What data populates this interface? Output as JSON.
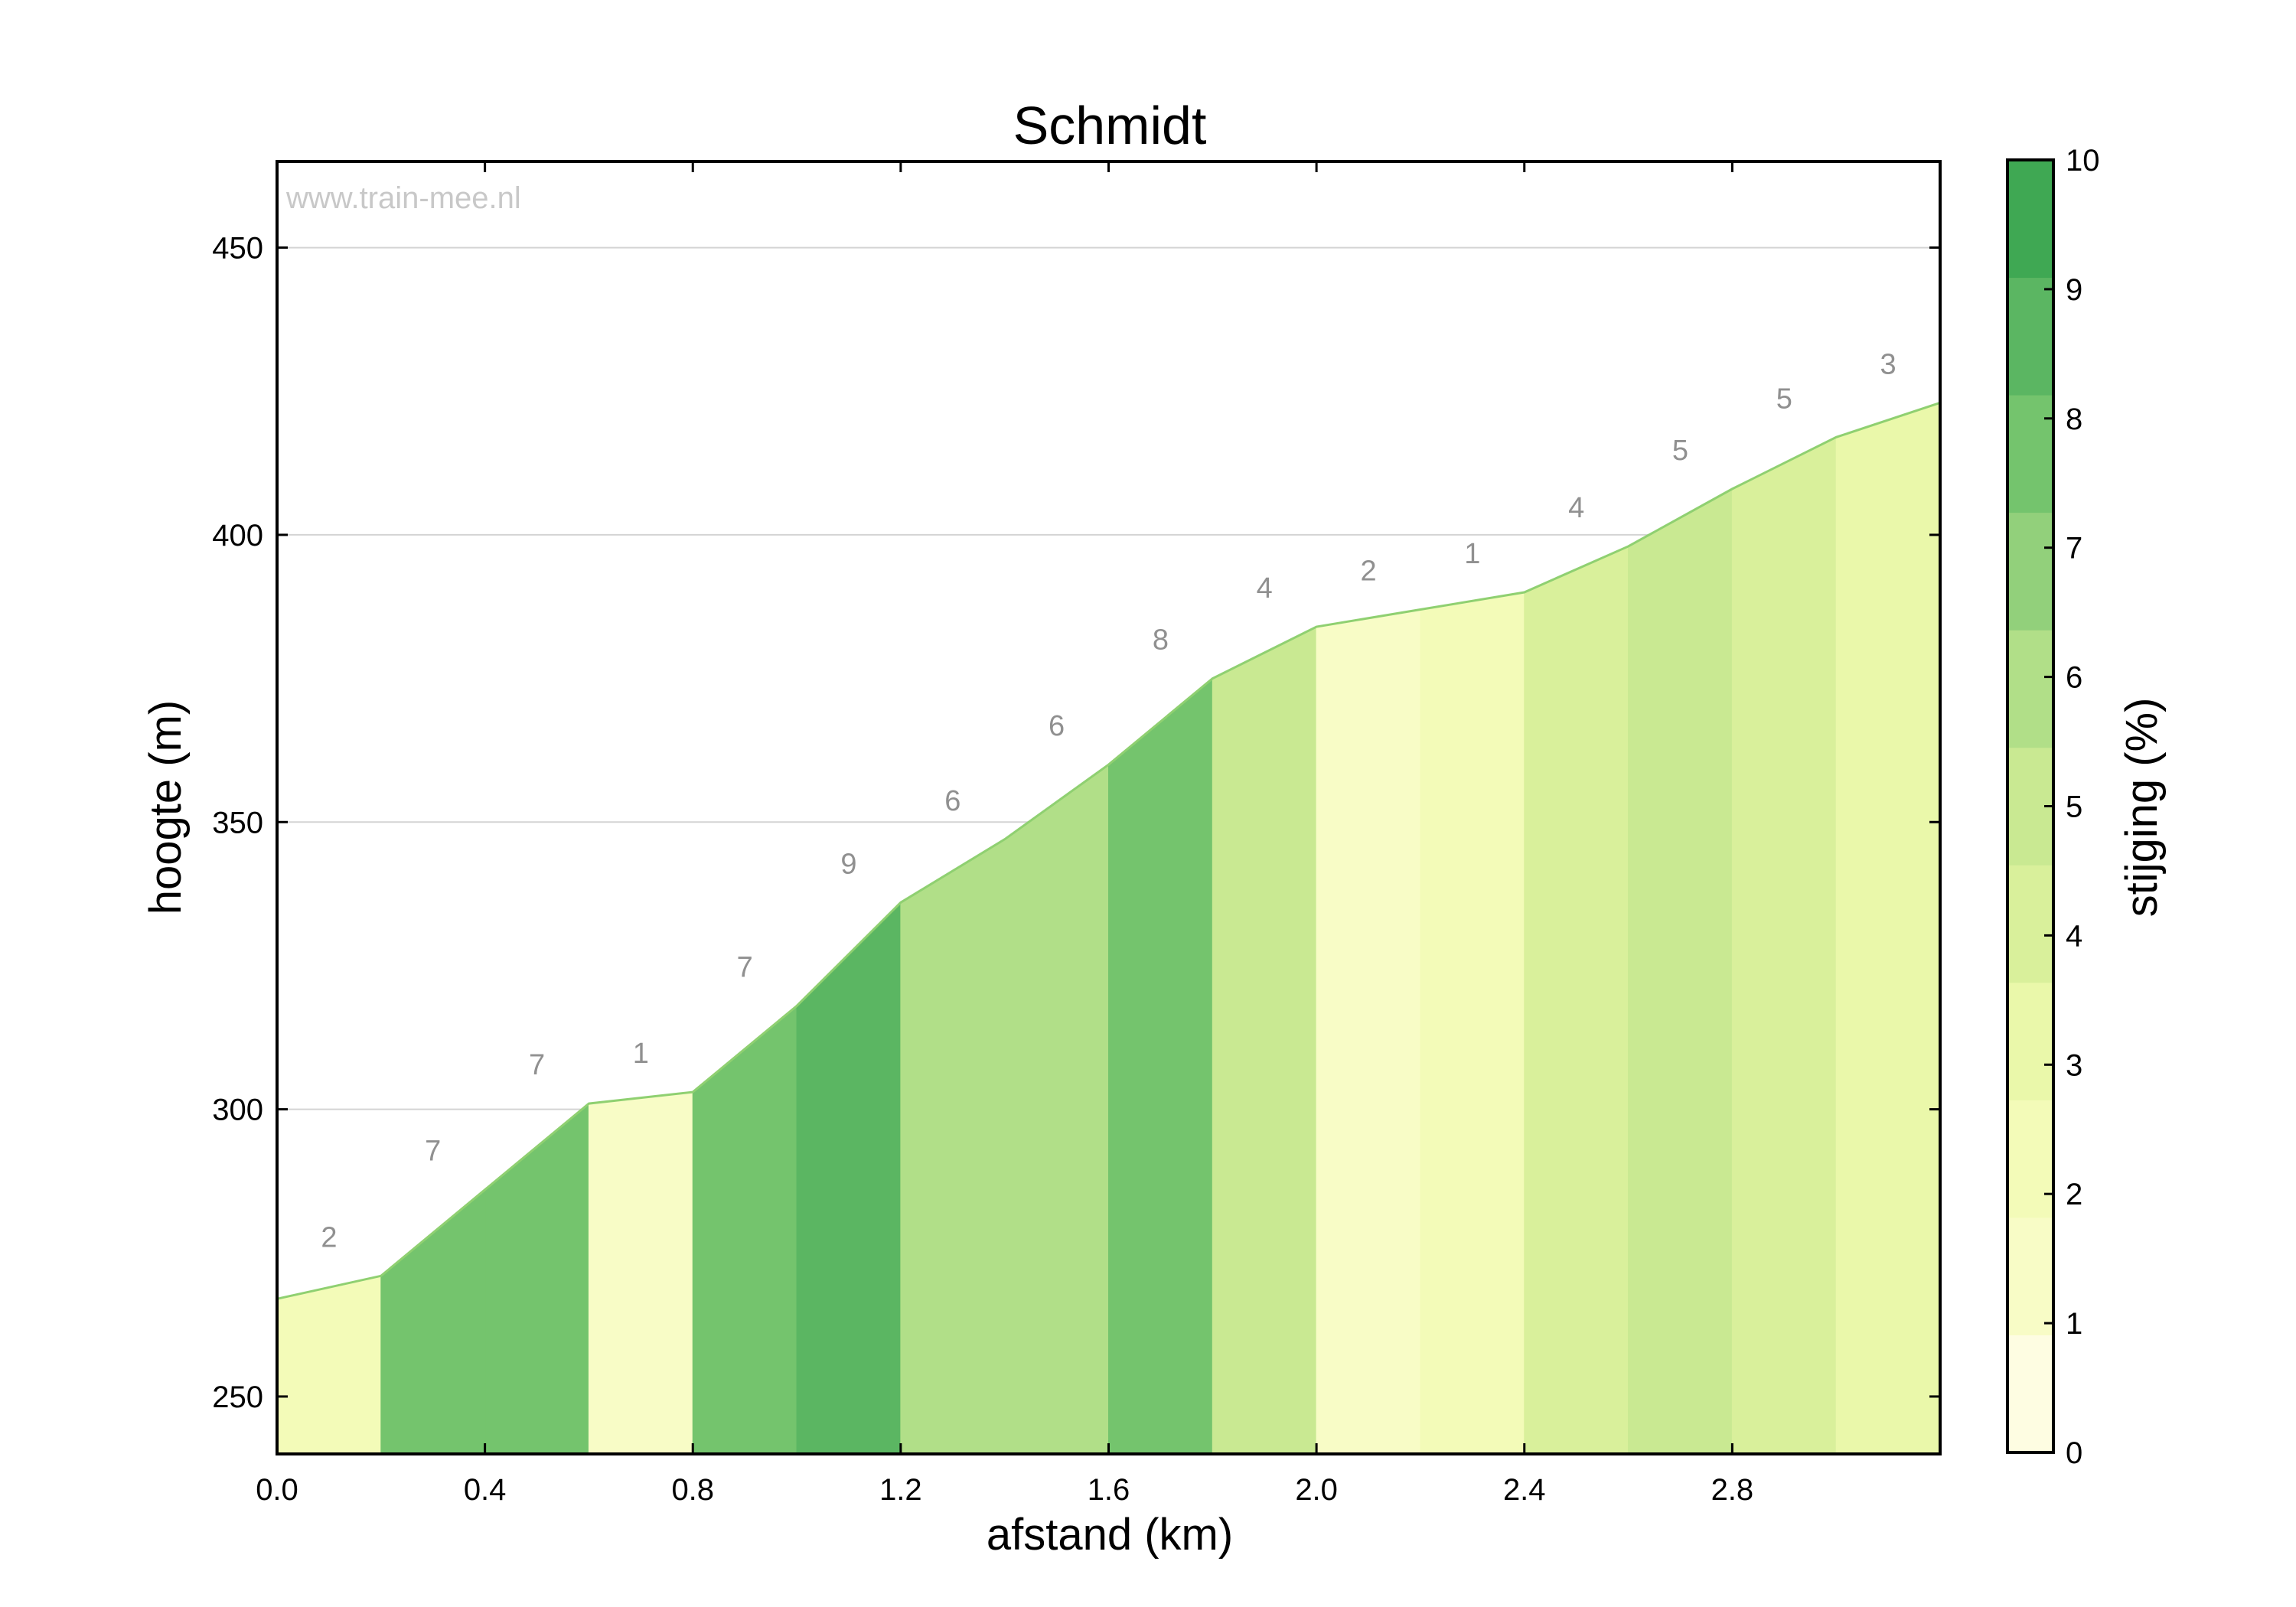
{
  "chart_data": {
    "type": "area",
    "title": "Schmidt",
    "xlabel": "afstand (km)",
    "ylabel": "hoogte (m)",
    "watermark": "www.train-mee.nl",
    "xlim": [
      0,
      3.2
    ],
    "ylim": [
      240,
      465
    ],
    "x_ticks": [
      0.0,
      0.4,
      0.8,
      1.2,
      1.6,
      2.0,
      2.4,
      2.8
    ],
    "x_tick_labels": [
      "0.0",
      "0.4",
      "0.8",
      "1.2",
      "1.6",
      "2.0",
      "2.4",
      "2.8"
    ],
    "y_ticks": [
      250,
      300,
      350,
      400,
      450
    ],
    "y_tick_labels": [
      "250",
      "300",
      "350",
      "400",
      "450"
    ],
    "grid": true,
    "profile": {
      "distance": [
        0.0,
        0.2,
        0.4,
        0.6,
        0.8,
        1.0,
        1.2,
        1.4,
        1.6,
        1.8,
        2.0,
        2.2,
        2.4,
        2.6,
        2.8,
        3.0,
        3.2
      ],
      "elevation": [
        267,
        271,
        286,
        301,
        303,
        318,
        336,
        347,
        360,
        375,
        384,
        387,
        390,
        398,
        408,
        417,
        423
      ]
    },
    "segment_gradients": [
      "2",
      "7",
      "7",
      "1",
      "7",
      "9",
      "6",
      "6",
      "8",
      "4",
      "2",
      "1",
      "4",
      "5",
      "5",
      "3"
    ],
    "colorbar": {
      "label": "stijging (%)",
      "range": [
        0,
        10
      ],
      "tick_labels": [
        "0",
        "1",
        "2",
        "3",
        "4",
        "5",
        "6",
        "7",
        "8",
        "9",
        "10"
      ],
      "colors": [
        "#fefde2",
        "#f8fcc6",
        "#f3fbb8",
        "#eaf8aa",
        "#d9f09b",
        "#c9e992",
        "#b1df88",
        "#92d07b",
        "#74c46d",
        "#5bb662",
        "#3fa853"
      ]
    }
  }
}
